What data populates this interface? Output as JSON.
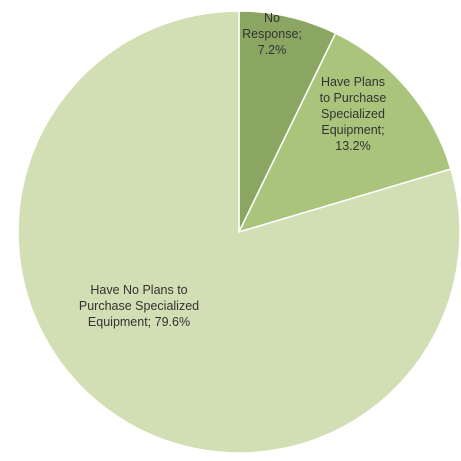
{
  "chart_data": {
    "type": "pie",
    "title": "",
    "slices": [
      {
        "label_lines": [
          "No",
          "Response;",
          "7.2%"
        ],
        "category": "No Response",
        "value": 7.2,
        "color": "#8aa662"
      },
      {
        "label_lines": [
          "Have Plans",
          "to Purchase",
          "Specialized",
          "Equipment;",
          "13.2%"
        ],
        "category": "Have Plans to Purchase Specialized Equipment",
        "value": 13.2,
        "color": "#aac47c"
      },
      {
        "label_lines": [
          "Have No Plans to",
          "Purchase Specialized",
          "Equipment; 79.6%"
        ],
        "category": "Have No Plans to Purchase Specialized Equipment",
        "value": 79.6,
        "color": "#d2deb4"
      }
    ],
    "start_angle_deg": 0,
    "direction": "clockwise",
    "legend": "none"
  }
}
